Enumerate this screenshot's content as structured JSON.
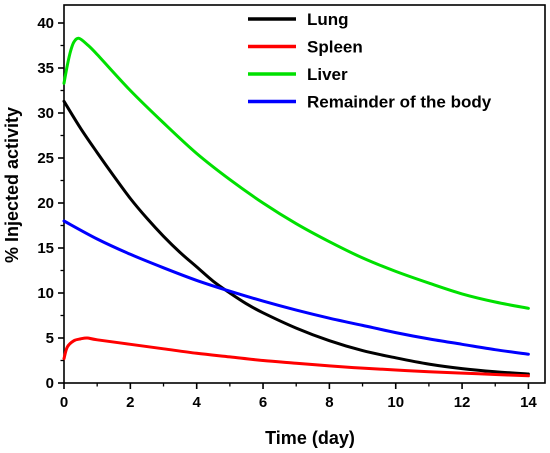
{
  "chart_data": {
    "type": "line",
    "title": "",
    "xlabel": "Time (day)",
    "ylabel": "% Injected activity",
    "xlim": [
      0,
      14.5
    ],
    "ylim": [
      0,
      42
    ],
    "x_ticks": [
      0,
      2,
      4,
      6,
      8,
      10,
      12,
      14
    ],
    "y_ticks": [
      0,
      5,
      10,
      15,
      20,
      25,
      30,
      35,
      40
    ],
    "grid": false,
    "legend_position": "top-right",
    "series": [
      {
        "name": "Lung",
        "color": "#000000",
        "x": [
          0,
          0.5,
          1,
          1.5,
          2,
          2.5,
          3,
          3.5,
          4,
          4.5,
          5,
          5.5,
          6,
          7,
          8,
          9,
          10,
          11,
          12,
          13,
          14
        ],
        "y": [
          31.3,
          28.3,
          25.6,
          23.0,
          20.5,
          18.3,
          16.3,
          14.5,
          12.9,
          11.3,
          10.0,
          8.8,
          7.8,
          6.1,
          4.7,
          3.6,
          2.8,
          2.1,
          1.6,
          1.25,
          1.0
        ]
      },
      {
        "name": "Spleen",
        "color": "#ff0000",
        "x": [
          0,
          0.1,
          0.3,
          0.5,
          0.7,
          1,
          2,
          3,
          4,
          5,
          6,
          7,
          8,
          9,
          10,
          11,
          12,
          13,
          14
        ],
        "y": [
          2.7,
          4.0,
          4.7,
          4.9,
          5.0,
          4.8,
          4.3,
          3.8,
          3.3,
          2.9,
          2.5,
          2.2,
          1.9,
          1.65,
          1.45,
          1.25,
          1.1,
          0.95,
          0.8
        ]
      },
      {
        "name": "Liver",
        "color": "#00e000",
        "x": [
          0,
          0.1,
          0.2,
          0.3,
          0.45,
          0.7,
          1,
          2,
          3,
          4,
          5,
          6,
          7,
          8,
          9,
          10,
          11,
          12,
          13,
          14
        ],
        "y": [
          33.3,
          35.3,
          36.9,
          37.9,
          38.3,
          37.6,
          36.5,
          32.5,
          28.9,
          25.5,
          22.6,
          20.0,
          17.7,
          15.7,
          13.9,
          12.4,
          11.1,
          9.9,
          9.0,
          8.3
        ]
      },
      {
        "name": "Remainder of the body",
        "color": "#0000ff",
        "x": [
          0,
          1,
          2,
          3,
          4,
          5,
          6,
          7,
          8,
          9,
          10,
          11,
          12,
          13,
          14
        ],
        "y": [
          18.0,
          16.0,
          14.3,
          12.8,
          11.4,
          10.2,
          9.1,
          8.1,
          7.2,
          6.4,
          5.6,
          4.9,
          4.3,
          3.7,
          3.2
        ]
      }
    ]
  }
}
